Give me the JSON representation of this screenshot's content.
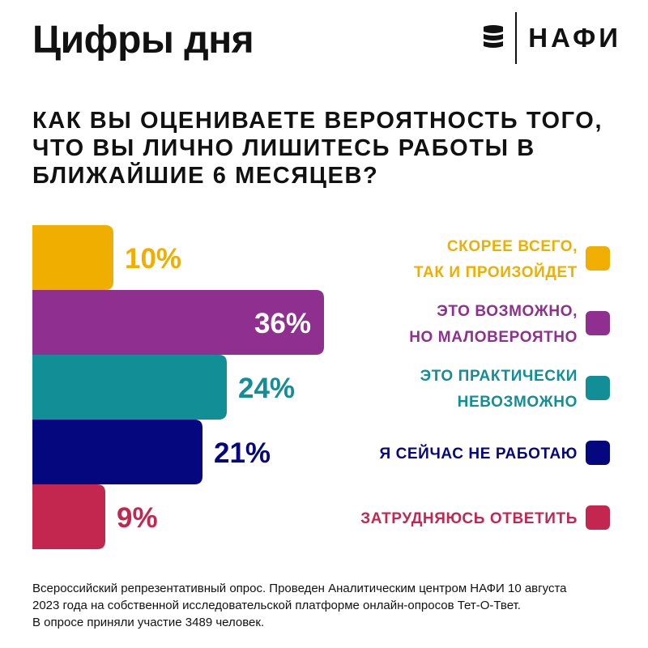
{
  "header": {
    "title": "Цифры дня",
    "logo_text": "НАФИ"
  },
  "question_lines": [
    "КАК ВЫ ОЦЕНИВАЕТЕ ВЕРОЯТНОСТЬ ТОГО,",
    "ЧТО ВЫ ЛИЧНО ЛИШИТЕСЬ РАБОТЫ В",
    "БЛИЖАЙШИЕ 6 МЕСЯЦЕВ?"
  ],
  "chart_data": {
    "type": "bar",
    "orientation": "horizontal",
    "title": "КАК ВЫ ОЦЕНИВАЕТЕ ВЕРОЯТНОСТЬ ТОГО, ЧТО ВЫ ЛИЧНО ЛИШИТЕСЬ РАБОТЫ В БЛИЖАЙШИЕ 6 МЕСЯЦЕВ?",
    "unit": "%",
    "legend_placement": "right",
    "grid": false,
    "categories": [
      "СКОРЕЕ ВСЕГО, ТАК И ПРОИЗОЙДЕТ",
      "ЭТО ВОЗМОЖНО, НО МАЛОВЕРОЯТНО",
      "ЭТО ПРАКТИЧЕСКИ НЕВОЗМОЖНО",
      "Я СЕЙЧАС НЕ РАБОТАЮ",
      "ЗАТРУДНЯЮСЬ ОТВЕТИТЬ"
    ],
    "values": [
      10,
      36,
      24,
      21,
      9
    ],
    "value_labels": [
      "10%",
      "36%",
      "24%",
      "21%",
      "9%"
    ],
    "legend_lines": [
      [
        "СКОРЕЕ ВСЕГО,",
        "ТАК И ПРОИЗОЙДЕТ"
      ],
      [
        "ЭТО ВОЗМОЖНО,",
        "НО МАЛОВЕРОЯТНО"
      ],
      [
        "ЭТО ПРАКТИЧЕСКИ",
        "НЕВОЗМОЖНО"
      ],
      [
        "Я СЕЙЧАС НЕ РАБОТАЮ"
      ],
      [
        "ЗАТРУДНЯЮСЬ ОТВЕТИТЬ"
      ]
    ],
    "colors": [
      "#f0ae00",
      "#8f2f8f",
      "#128e96",
      "#05077e",
      "#c3264e"
    ]
  },
  "footer_lines": [
    "Всероссийский репрезентативный опрос. Проведен Аналитическим центром НАФИ 10 августа",
    "2023 года на собственной исследовательской платформе онлайн-опросов Тет-О-Твет.",
    "В опросе приняли участие 3489 человек."
  ]
}
